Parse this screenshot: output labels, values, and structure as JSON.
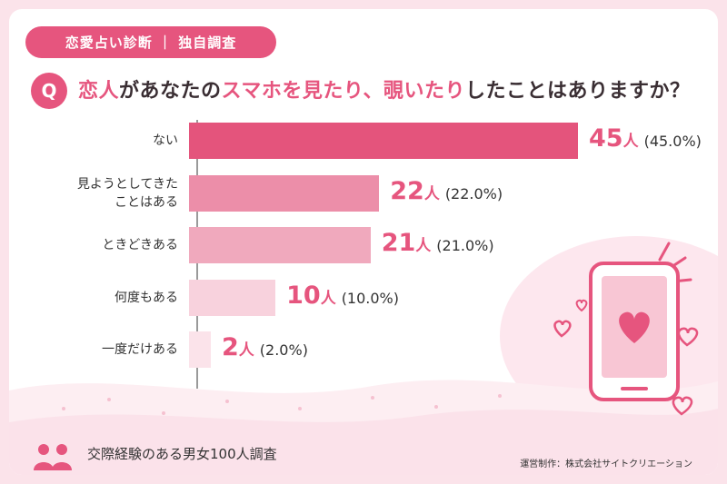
{
  "header": {
    "tag": "恋愛占い診断 ｜ 独自調査",
    "q_badge": "Q",
    "question_parts": [
      "恋人",
      "があなたの",
      "スマホを見たり、覗いたり",
      "したことはありますか？"
    ]
  },
  "chart_data": {
    "type": "bar",
    "orientation": "horizontal",
    "categories": [
      "ない",
      "見ようとしてきた\nことはある",
      "ときどきある",
      "何度もある",
      "一度だけある"
    ],
    "values": [
      45,
      22,
      21,
      10,
      2
    ],
    "percent_labels": [
      "(45.0%)",
      "(22.0%)",
      "(21.0%)",
      "(10.0%)",
      "(2.0%)"
    ],
    "unit": "人",
    "xlim": [
      0,
      45
    ],
    "grid": false,
    "bar_colors": [
      "#e4547c",
      "#ec8ea9",
      "#f0a9bd",
      "#f8d2dd",
      "#fbe3ea"
    ]
  },
  "footer": {
    "survey": "交際経験のある男女100人調査",
    "credit": "運営制作：株式会社サイトクリエーション"
  },
  "colors": {
    "accent": "#e6557e",
    "background": "#fbe3ea"
  },
  "icons": [
    "people-icon",
    "smartphone-heart-icon",
    "heart-icon"
  ]
}
